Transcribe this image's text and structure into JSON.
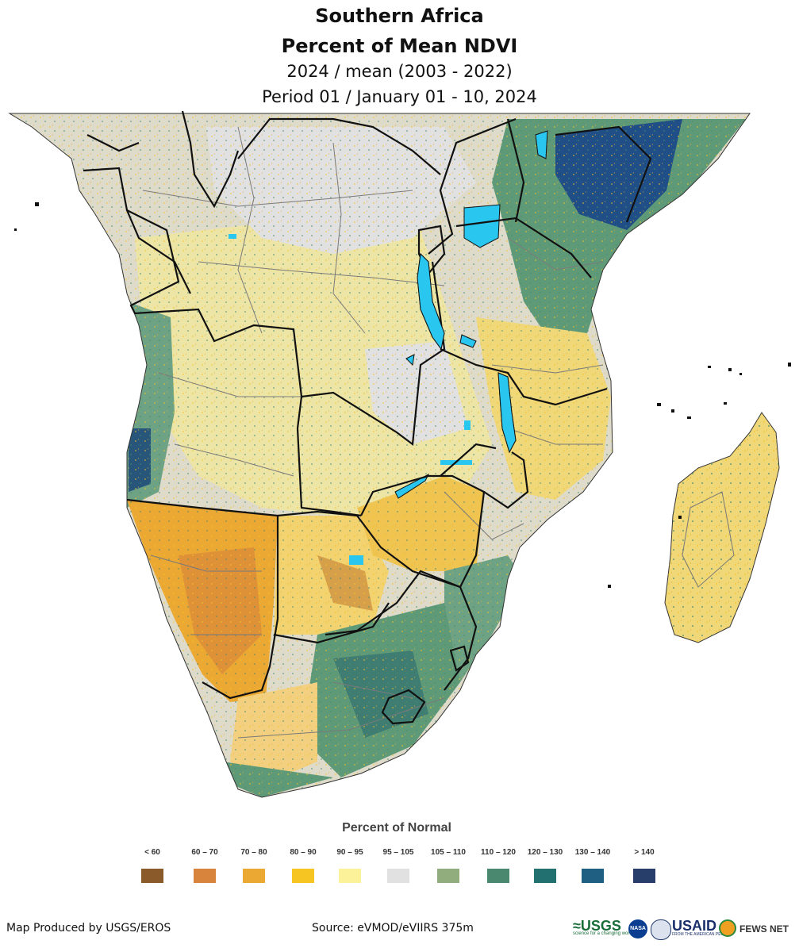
{
  "title": {
    "line1": "Southern Africa",
    "line2": "Percent of Mean NDVI",
    "line3": "2024 / mean (2003 - 2022)",
    "line4": "Period 01 / January 01 - 10, 2024"
  },
  "legend": {
    "title": "Percent of Normal",
    "classes": [
      {
        "label": "< 60",
        "color": "#8a5a2b"
      },
      {
        "label": "60 – 70",
        "color": "#d9843c"
      },
      {
        "label": "70 – 80",
        "color": "#eba832"
      },
      {
        "label": "80 – 90",
        "color": "#f6c521"
      },
      {
        "label": "90 – 95",
        "color": "#fbf29a"
      },
      {
        "label": "95 – 105",
        "color": "#e1e1e1"
      },
      {
        "label": "105 – 110",
        "color": "#92ad7d"
      },
      {
        "label": "110 – 120",
        "color": "#4a8870"
      },
      {
        "label": "120 – 130",
        "color": "#227070"
      },
      {
        "label": "130 – 140",
        "color": "#1f5f82"
      },
      {
        "label": "> 140",
        "color": "#273e6b"
      }
    ]
  },
  "colors": {
    "water": "#29c6f0",
    "border": "#111111",
    "admin": "#777777"
  },
  "footer": {
    "credit": "Map Produced by USGS/EROS",
    "source": "Source: eVMOD/eVIIRS 375m",
    "logos": {
      "usgs": "USGS",
      "usgs_tagline": "science for a changing world",
      "nasa": "NASA",
      "usaid": "USAID",
      "usaid_tagline": "FROM THE AMERICAN PEOPLE",
      "fews": "FEWS NET"
    }
  }
}
